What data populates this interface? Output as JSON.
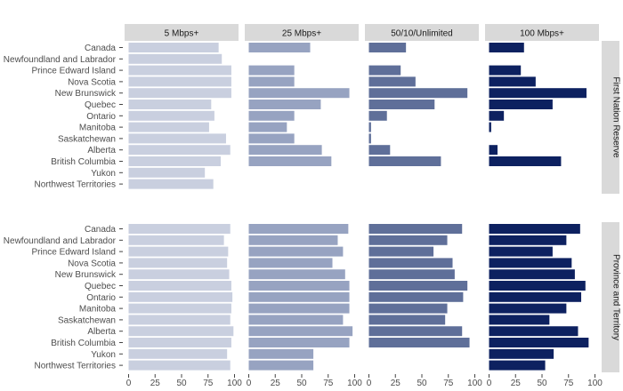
{
  "chart_data": {
    "type": "bar",
    "orientation": "horizontal",
    "facet_columns": [
      "5 Mbps+",
      "25 Mbps+",
      "50/10/Unlimited",
      "100 Mbps+"
    ],
    "facet_rows": [
      "First Nation Reserve",
      "Province and Territory"
    ],
    "categories": [
      "Canada",
      "Newfoundland and Labrador",
      "Prince Edward Island",
      "Nova Scotia",
      "New Brunswick",
      "Quebec",
      "Ontario",
      "Manitoba",
      "Saskatchewan",
      "Alberta",
      "British Columbia",
      "Yukon",
      "Northwest Territories"
    ],
    "xlim": [
      0,
      100
    ],
    "xticks": [
      0,
      25,
      50,
      75,
      100
    ],
    "colors": {
      "5 Mbps+": "#c9cfdf",
      "25 Mbps+": "#97a3c1",
      "50/10/Unlimited": "#5f6f99",
      "100 Mbps+": "#0d2160",
      "strip": "#d9d9d9",
      "tick": "#444444"
    },
    "panels": {
      "First Nation Reserve": {
        "5 Mbps+": [
          85,
          88,
          97,
          97,
          97,
          78,
          81,
          76,
          92,
          96,
          87,
          72,
          80
        ],
        "25 Mbps+": [
          58,
          null,
          43,
          43,
          95,
          68,
          43,
          36,
          43,
          69,
          78,
          null,
          null
        ],
        "50/10/Unlimited": [
          35,
          null,
          30,
          44,
          93,
          62,
          17,
          2,
          2,
          20,
          68,
          null,
          null
        ],
        "100 Mbps+": [
          33,
          null,
          30,
          44,
          92,
          60,
          14,
          2,
          null,
          8,
          68,
          null,
          null
        ]
      },
      "Province and Territory": {
        "5 Mbps+": [
          96,
          90,
          94,
          93,
          95,
          97,
          98,
          97,
          96,
          99,
          97,
          93,
          96
        ],
        "25 Mbps+": [
          94,
          84,
          89,
          79,
          91,
          95,
          95,
          95,
          89,
          98,
          95,
          61,
          61
        ],
        "50/10/Unlimited": [
          88,
          74,
          61,
          79,
          81,
          93,
          89,
          74,
          72,
          88,
          95,
          null,
          null
        ],
        "100 Mbps+": [
          86,
          73,
          60,
          78,
          81,
          91,
          87,
          73,
          57,
          84,
          94,
          61,
          53
        ]
      }
    }
  }
}
